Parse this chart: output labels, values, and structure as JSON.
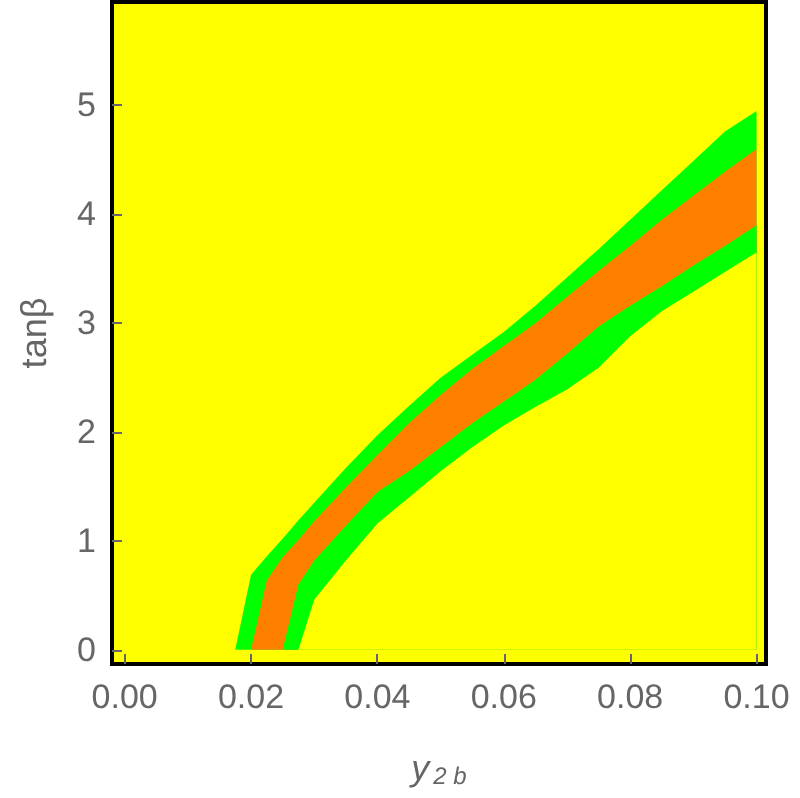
{
  "chart_data": {
    "type": "area",
    "stacked": true,
    "xlabel": "y$_{2 b}$",
    "ylabel": "tanβ",
    "x": [
      0.0175,
      0.02,
      0.0225,
      0.025,
      0.0275,
      0.03,
      0.035,
      0.04,
      0.045,
      0.05,
      0.055,
      0.06,
      0.065,
      0.07,
      0.075,
      0.08,
      0.085,
      0.09,
      0.095,
      0.1
    ],
    "series": [
      {
        "color": "#ffff00",
        "values": [
          0,
          0,
          0,
          0,
          0,
          0.46,
          0.82,
          1.16,
          1.4,
          1.64,
          1.86,
          2.06,
          2.23,
          2.39,
          2.59,
          2.88,
          3.11,
          3.29,
          3.47,
          3.65
        ]
      },
      {
        "color": "#00ff00",
        "values": [
          0,
          0,
          0,
          0,
          0.6,
          0.36,
          0.32,
          0.29,
          0.24,
          0.22,
          0.22,
          0.22,
          0.25,
          0.33,
          0.38,
          0.28,
          0.23,
          0.24,
          0.24,
          0.25
        ]
      },
      {
        "color": "#ff8000",
        "values": [
          0,
          0,
          0.64,
          0.85,
          0.41,
          0.36,
          0.35,
          0.34,
          0.44,
          0.48,
          0.5,
          0.51,
          0.52,
          0.52,
          0.51,
          0.55,
          0.61,
          0.64,
          0.68,
          0.7
        ]
      },
      {
        "color": "#00ff00",
        "values": [
          0,
          0.69,
          0.22,
          0.17,
          0.18,
          0.17,
          0.18,
          0.18,
          0.16,
          0.16,
          0.13,
          0.13,
          0.16,
          0.18,
          0.2,
          0.24,
          0.27,
          0.32,
          0.37,
          0.35
        ]
      }
    ],
    "xlim": [
      -0.002,
      0.1015
    ],
    "ylim": [
      -0.13,
      5.95
    ],
    "xticks": [
      {
        "value": 0,
        "label": "0.00"
      },
      {
        "value": 0.02,
        "label": "0.02"
      },
      {
        "value": 0.04,
        "label": "0.04"
      },
      {
        "value": 0.06,
        "label": "0.06"
      },
      {
        "value": 0.08,
        "label": "0.08"
      },
      {
        "value": 0.1,
        "label": "0.10"
      }
    ],
    "yticks": [
      0,
      1,
      2,
      3,
      4,
      5
    ],
    "grid": false,
    "marker": "none"
  }
}
